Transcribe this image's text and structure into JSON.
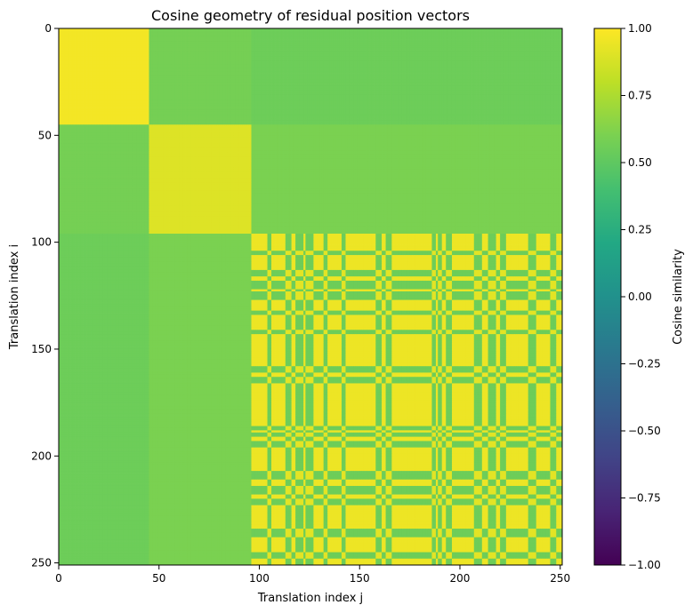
{
  "chart_data": {
    "type": "heatmap",
    "title": "Cosine geometry of residual position vectors",
    "xlabel": "Translation index j",
    "ylabel": "Translation index i",
    "colorbar_label": "Cosine similarity",
    "colormap": "viridis",
    "value_range": [
      -1.0,
      1.0
    ],
    "n": 251,
    "xlim": [
      0,
      251
    ],
    "ylim": [
      251,
      0
    ],
    "x_ticks": [
      0,
      50,
      100,
      150,
      200,
      250
    ],
    "x_tick_labels": [
      "0",
      "50",
      "100",
      "150",
      "200",
      "250"
    ],
    "y_ticks": [
      0,
      50,
      100,
      150,
      200,
      250
    ],
    "y_tick_labels": [
      "0",
      "50",
      "100",
      "150",
      "200",
      "250"
    ],
    "colorbar_ticks": [
      1.0,
      0.75,
      0.5,
      0.25,
      0.0,
      -0.25,
      -0.5,
      -0.75,
      -1.0
    ],
    "colorbar_tick_labels": [
      "1.00",
      "0.75",
      "0.50",
      "0.25",
      "0.00",
      "−0.25",
      "−0.50",
      "−0.75",
      "−1.00"
    ],
    "blocks": [
      {
        "start": 0,
        "end": 45,
        "group": "A"
      },
      {
        "start": 45,
        "end": 96,
        "group": "B"
      },
      {
        "start": 96,
        "end": 251,
        "group": "C"
      }
    ],
    "block_similarity": {
      "A-A": 0.97,
      "B-B": 0.9,
      "C-C": 0.95,
      "A-B": 0.58,
      "A-C": 0.55,
      "B-C": 0.6
    },
    "secondary_index_bands": [
      {
        "start": 104,
        "end": 106
      },
      {
        "start": 113,
        "end": 116
      },
      {
        "start": 118,
        "end": 122
      },
      {
        "start": 123,
        "end": 127
      },
      {
        "start": 132,
        "end": 134
      },
      {
        "start": 141,
        "end": 143
      },
      {
        "start": 158,
        "end": 161
      },
      {
        "start": 163,
        "end": 166
      },
      {
        "start": 186,
        "end": 188
      },
      {
        "start": 189,
        "end": 191
      },
      {
        "start": 193,
        "end": 196
      },
      {
        "start": 207,
        "end": 211
      },
      {
        "start": 214,
        "end": 218
      },
      {
        "start": 220,
        "end": 223
      },
      {
        "start": 234,
        "end": 238
      },
      {
        "start": 245,
        "end": 248
      }
    ],
    "secondary_band_cross_similarity": 0.55,
    "secondary_band_self_similarity": 0.92
  }
}
